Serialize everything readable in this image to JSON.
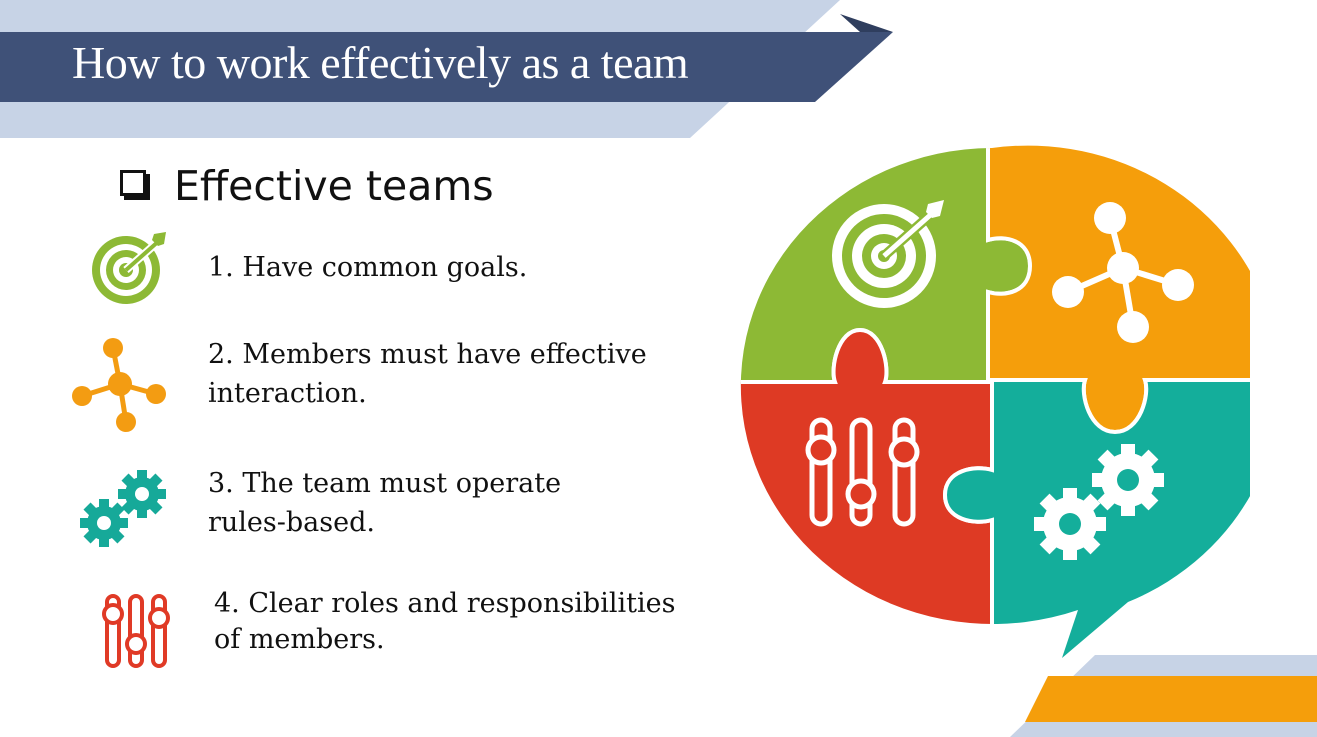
{
  "slide": {
    "title": "How to work effectively as a team",
    "section_heading": "Effective teams",
    "items": [
      {
        "line1": "1. Have common goals.",
        "line2": "",
        "icon": "target-icon",
        "color": "#8DB935"
      },
      {
        "line1": "2. Members must have effective",
        "line2": "interaction.",
        "icon": "network-icon",
        "color": "#F39C12"
      },
      {
        "line1": "3. The team must operate",
        "line2": "rules-based.",
        "icon": "gears-icon",
        "color": "#16A999"
      },
      {
        "line1": "4. Clear roles and responsibilities",
        "line2": "of members.",
        "icon": "sliders-icon",
        "color": "#E03A26"
      }
    ]
  },
  "colors": {
    "title_banner": "#3F5178",
    "light_stripe": "#C7D3E6",
    "green": "#8DB935",
    "orange": "#F59E0B",
    "teal": "#14AE9B",
    "red": "#DE3A24"
  }
}
